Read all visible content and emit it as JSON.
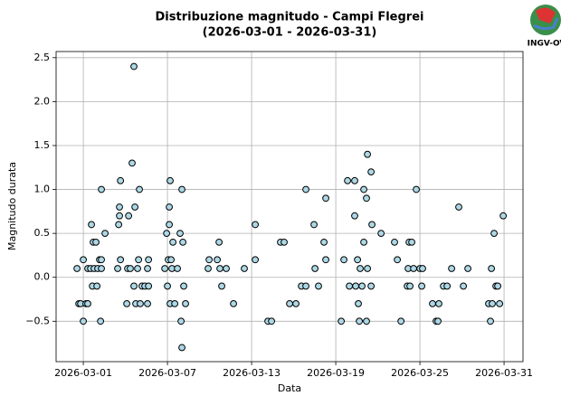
{
  "chart_data": {
    "type": "scatter",
    "title": [
      "Distribuzione magnitudo - Campi Flegrei",
      "(2026-03-01 - 2026-03-31)"
    ],
    "xlabel": "Data",
    "ylabel": "Magnitudo durata",
    "logo_text": "INGV-OV",
    "grid": true,
    "color": "#add8e6",
    "edgecolor": "#000000",
    "xlim": [
      -0.94,
      32.35
    ],
    "xticks": [
      {
        "value": 1,
        "label": "2026-03-01"
      },
      {
        "value": 7,
        "label": "2026-03-07"
      },
      {
        "value": 13,
        "label": "2026-03-13"
      },
      {
        "value": 19,
        "label": "2026-03-19"
      },
      {
        "value": 25,
        "label": "2026-03-25"
      },
      {
        "value": 31,
        "label": "2026-03-31"
      }
    ],
    "ylim": [
      -0.96,
      2.57
    ],
    "yticks": [
      {
        "value": -0.5,
        "label": "−0.5"
      },
      {
        "value": 0,
        "label": "0.0"
      },
      0.5,
      {
        "value": 1,
        "label": "1.0"
      },
      1.5,
      {
        "value": 2,
        "label": "2.0"
      },
      2.5
    ],
    "x": [
      0.55,
      0.68,
      0.81,
      1.0,
      1.0,
      1.19,
      1.32,
      1.32,
      1.52,
      1.58,
      1.65,
      1.71,
      1.77,
      1.9,
      1.97,
      2.03,
      2.16,
      2.23,
      2.29,
      2.29,
      2.55,
      2.29,
      3.45,
      3.52,
      3.58,
      3.58,
      3.65,
      3.65,
      4.1,
      4.16,
      4.23,
      4.35,
      4.48,
      4.61,
      4.61,
      4.68,
      4.74,
      4.87,
      4.94,
      5.0,
      5.06,
      5.19,
      5.39,
      5.58,
      5.58,
      5.65,
      5.65,
      6.81,
      6.94,
      7.0,
      7.06,
      7.13,
      7.13,
      7.19,
      7.19,
      7.26,
      7.32,
      7.39,
      7.52,
      7.71,
      7.9,
      7.97,
      8.03,
      8.03,
      8.1,
      8.16,
      8.29,
      9.9,
      9.97,
      10.55,
      10.68,
      10.74,
      10.87,
      11.19,
      11.71,
      12.48,
      13.26,
      13.26,
      14.16,
      14.42,
      15.06,
      15.32,
      15.71,
      16.16,
      16.55,
      16.87,
      16.87,
      17.45,
      17.52,
      17.77,
      18.16,
      18.29,
      18.29,
      19.39,
      19.58,
      19.84,
      19.97,
      20.35,
      20.35,
      20.42,
      20.55,
      20.61,
      20.68,
      20.74,
      20.87,
      21.0,
      21.0,
      21.19,
      21.19,
      21.26,
      21.26,
      21.52,
      21.52,
      21.58,
      22.23,
      23.19,
      23.39,
      23.65,
      24.1,
      24.16,
      24.23,
      24.29,
      24.42,
      24.55,
      24.74,
      25.0,
      25.19,
      25.13,
      25.9,
      26.16,
      26.29,
      26.35,
      26.68,
      26.94,
      27.26,
      27.77,
      28.1,
      28.42,
      29.9,
      30.03,
      30.1,
      30.16,
      30.29,
      30.42,
      30.55,
      30.68,
      30.94
    ],
    "values": [
      0.1,
      -0.3,
      -0.3,
      0.2,
      -0.5,
      -0.3,
      0.1,
      -0.3,
      0.1,
      0.6,
      -0.1,
      0.4,
      0.1,
      0.4,
      -0.1,
      0.1,
      0.2,
      -0.5,
      1.0,
      0.1,
      0.5,
      0.2,
      0.1,
      0.6,
      0.7,
      0.8,
      1.1,
      0.2,
      -0.3,
      0.1,
      0.7,
      0.1,
      1.3,
      2.4,
      -0.1,
      0.8,
      -0.3,
      0.1,
      0.2,
      1.0,
      -0.3,
      -0.1,
      -0.1,
      -0.3,
      0.1,
      0.2,
      -0.1,
      0.1,
      0.5,
      -0.1,
      0.2,
      0.8,
      0.6,
      1.1,
      -0.3,
      0.2,
      0.1,
      0.4,
      -0.3,
      0.1,
      0.5,
      -0.5,
      1.0,
      -0.8,
      0.4,
      -0.1,
      -0.3,
      0.1,
      0.2,
      0.2,
      0.4,
      0.1,
      -0.1,
      0.1,
      -0.3,
      0.1,
      0.6,
      0.2,
      -0.5,
      -0.5,
      0.4,
      0.4,
      -0.3,
      -0.3,
      -0.1,
      1.0,
      -0.1,
      0.6,
      0.1,
      -0.1,
      0.4,
      0.9,
      0.2,
      -0.5,
      0.2,
      1.1,
      -0.1,
      1.1,
      0.7,
      -0.1,
      0.2,
      -0.3,
      -0.5,
      0.1,
      -0.1,
      0.4,
      1.0,
      0.9,
      -0.5,
      0.1,
      1.4,
      1.2,
      -0.1,
      0.6,
      0.5,
      0.4,
      0.2,
      -0.5,
      -0.1,
      0.1,
      0.4,
      -0.1,
      0.4,
      0.1,
      1.0,
      0.1,
      0.1,
      -0.1,
      -0.3,
      -0.5,
      -0.5,
      -0.3,
      -0.1,
      -0.1,
      0.1,
      0.8,
      -0.1,
      0.1,
      -0.3,
      -0.5,
      0.1,
      -0.3,
      0.5,
      -0.1,
      -0.1,
      -0.3,
      0.7
    ]
  }
}
